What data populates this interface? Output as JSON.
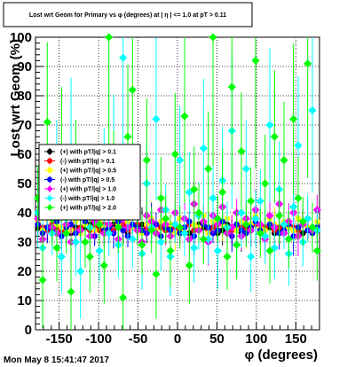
{
  "title": "Lost wrt Geom for Primary vs φ (degrees) at | η | <= 1.0 at pT > 0.11",
  "date_stamp": "Mon May  8 15:41:47 2017",
  "chart_data": {
    "type": "scatter",
    "title": "Lost wrt Geom for Primary vs φ (degrees) at | η | <= 1.0 at pT > 0.11",
    "xlabel": "φ (degrees)",
    "ylabel": "Lost wrt Geom (%)",
    "xlim": [
      -180,
      180
    ],
    "ylim": [
      0,
      100
    ],
    "xticks": [
      -150,
      -100,
      -50,
      0,
      50,
      100,
      150
    ],
    "yticks": [
      0,
      10,
      20,
      30,
      40,
      50,
      60,
      70,
      80,
      90,
      100
    ],
    "grid": true,
    "legend_position": "center-left",
    "n_bins": 60,
    "series": [
      {
        "name": "(+) with pT/|q| > 0.1",
        "color": "#000000",
        "marker": "circle",
        "values": [
          35,
          34,
          35,
          33,
          35,
          34,
          36,
          33,
          35,
          34,
          35,
          36,
          34,
          35,
          33,
          34,
          36,
          35,
          34,
          33,
          35,
          34,
          36,
          35,
          34,
          33,
          35,
          34,
          35,
          36,
          34,
          35,
          33,
          34,
          36,
          35,
          34,
          35,
          33,
          34,
          36,
          35,
          34,
          33,
          35,
          34,
          36,
          35,
          34,
          35,
          33,
          34,
          35,
          36,
          34,
          35,
          33,
          34,
          35,
          34
        ]
      },
      {
        "name": "(-) with pT/|q| > 0.1",
        "color": "#ff0000",
        "marker": "circle",
        "values": [
          36,
          35,
          34,
          36,
          35,
          34,
          35,
          36,
          34,
          35,
          36,
          34,
          35,
          34,
          36,
          35,
          34,
          35,
          36,
          34,
          35,
          36,
          34,
          35,
          34,
          36,
          35,
          34,
          36,
          35,
          34,
          35,
          36,
          34,
          35,
          36,
          34,
          35,
          34,
          36,
          35,
          34,
          36,
          35,
          34,
          35,
          36,
          34,
          35,
          36,
          34,
          35,
          34,
          36,
          35,
          34,
          36,
          35,
          34,
          35
        ]
      },
      {
        "name": "(+) with pT/|q| > 0.5",
        "color": "#ffff00",
        "marker": "circle",
        "values": [
          37,
          34,
          38,
          33,
          36,
          35,
          39,
          34,
          37,
          33,
          36,
          38,
          34,
          37,
          35,
          33,
          38,
          36,
          34,
          37,
          35,
          39,
          33,
          36,
          38,
          34,
          37,
          35,
          36,
          33,
          38,
          34,
          37,
          36,
          35,
          39,
          33,
          37,
          34,
          36,
          38,
          35,
          34,
          37,
          33,
          36,
          39,
          35,
          34,
          38,
          36,
          33,
          37,
          35,
          34,
          38,
          36,
          35,
          33,
          37
        ]
      },
      {
        "name": "(-) with pT/|q| > 0.5",
        "color": "#0000ff",
        "marker": "circle",
        "values": [
          36,
          33,
          35,
          34,
          37,
          32,
          35,
          36,
          33,
          34,
          37,
          35,
          32,
          36,
          34,
          35,
          33,
          37,
          34,
          32,
          36,
          35,
          34,
          33,
          37,
          36,
          32,
          35,
          34,
          36,
          33,
          35,
          37,
          32,
          34,
          36,
          35,
          33,
          34,
          37,
          35,
          32,
          36,
          34,
          33,
          35,
          37,
          34,
          32,
          36,
          35,
          33,
          34,
          36,
          32,
          35,
          37,
          34,
          33,
          35
        ]
      },
      {
        "name": "(+) with pT/|q| > 1.0",
        "color": "#ff00ff",
        "marker": "diamond",
        "values": [
          38,
          31,
          40,
          35,
          33,
          42,
          36,
          30,
          39,
          34,
          41,
          32,
          37,
          43,
          33,
          36,
          40,
          31,
          38,
          35,
          42,
          34,
          30,
          39,
          37,
          33,
          41,
          36,
          32,
          40,
          35,
          38,
          31,
          43,
          34,
          37,
          30,
          39,
          36,
          42,
          33,
          35,
          40,
          32,
          38,
          34,
          41,
          36,
          31,
          39,
          35,
          43,
          33,
          37,
          40,
          32,
          36,
          38,
          34,
          41
        ]
      },
      {
        "name": "(-) with pT/|q| > 1.0",
        "color": "#00ffff",
        "marker": "diamond",
        "values": [
          40,
          28,
          45,
          33,
          55,
          25,
          38,
          62,
          30,
          20,
          42,
          35,
          48,
          27,
          52,
          33,
          60,
          29,
          93,
          40,
          31,
          44,
          26,
          50,
          35,
          72,
          30,
          41,
          25,
          36,
          58,
          33,
          47,
          28,
          39,
          62,
          31,
          45,
          27,
          51,
          35,
          68,
          29,
          40,
          55,
          25,
          38,
          44,
          32,
          70,
          28,
          48,
          36,
          26,
          42,
          63,
          30,
          38,
          75,
          34
        ]
      },
      {
        "name": "(+) with pT/|q| > 2.0",
        "color": "#00ff00",
        "marker": "diamond",
        "values": [
          45,
          17,
          71,
          38,
          28,
          60,
          33,
          13,
          55,
          41,
          30,
          25,
          48,
          36,
          22,
          100,
          52,
          35,
          11,
          66,
          82,
          40,
          29,
          58,
          34,
          19,
          45,
          38,
          27,
          60,
          35,
          73,
          22,
          48,
          40,
          31,
          55,
          100,
          38,
          47,
          25,
          83,
          29,
          61,
          36,
          44,
          92,
          33,
          50,
          27,
          66,
          39,
          58,
          31,
          72,
          45,
          37,
          91,
          35,
          27
        ]
      }
    ]
  }
}
